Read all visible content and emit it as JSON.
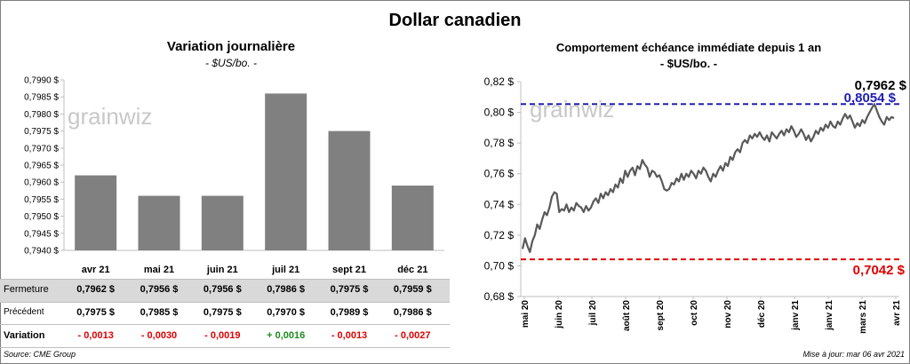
{
  "title": "Dollar canadien",
  "left": {
    "title": "Variation  journalière",
    "subtitle": "- $US/bo. -",
    "row_labels": {
      "close": "Fermeture",
      "previous": "Précédent",
      "variation": "Variation"
    },
    "close_values": [
      "0,7962  $",
      "0,7956  $",
      "0,7956  $",
      "0,7986  $",
      "0,7975  $",
      "0,7959  $"
    ],
    "previous_values": [
      "0,7975  $",
      "0,7985  $",
      "0,7975  $",
      "0,7970  $",
      "0,7989  $",
      "0,7986  $"
    ],
    "variation_values": [
      "- 0,0013",
      "- 0,0030",
      "- 0,0019",
      "+ 0,0016",
      "- 0,0013",
      "- 0,0027"
    ],
    "variation_colors": [
      "#e00000",
      "#e00000",
      "#e00000",
      "#1e8a1e",
      "#e00000",
      "#e00000"
    ]
  },
  "right": {
    "title": "Comportement échéance immédiate depuis 1 an",
    "subtitle": "- $US/bo. -",
    "last_label": "0,7962 $",
    "high_label": "0,8054 $",
    "low_label": "0,7042  $"
  },
  "watermark": "grainwiz",
  "source": "Source: CME Group",
  "updated": "Mise à jour: mar 06 avr 2021",
  "colors": {
    "bar": "#808080",
    "line": "#595959",
    "high": "#1f1fb4",
    "low": "#e00000",
    "table_band": "#d9d9d9"
  },
  "chart_data": [
    {
      "type": "bar",
      "title": "Variation  journalière",
      "subtitle": "- $US/bo. -",
      "categories": [
        "avr 21",
        "mai 21",
        "juin 21",
        "juil 21",
        "sept 21",
        "déc 21"
      ],
      "values": [
        0.7962,
        0.7956,
        0.7956,
        0.7986,
        0.7975,
        0.7959
      ],
      "ylim": [
        0.794,
        0.799
      ],
      "yticks": [
        "0,7940 $",
        "0,7945 $",
        "0,7950 $",
        "0,7955 $",
        "0,7960 $",
        "0,7965 $",
        "0,7970 $",
        "0,7975 $",
        "0,7980 $",
        "0,7985 $",
        "0,7990 $"
      ],
      "grid": false
    },
    {
      "type": "line",
      "title": "Comportement échéance immédiate depuis 1 an",
      "subtitle": "- $US/bo. -",
      "xticks": [
        "mai 20",
        "juin 20",
        "juil 20",
        "août 20",
        "sept 20",
        "oct 20",
        "nov 20",
        "déc 20",
        "janv 21",
        "janv 21",
        "mars 21",
        "avr 21"
      ],
      "yticks": [
        "0,68 $",
        "0,70 $",
        "0,72 $",
        "0,74 $",
        "0,76 $",
        "0,78 $",
        "0,80 $",
        "0,82 $"
      ],
      "ylim": [
        0.68,
        0.82
      ],
      "series": [
        {
          "values": [
            0.711,
            0.718,
            0.713,
            0.709,
            0.716,
            0.72,
            0.727,
            0.724,
            0.73,
            0.735,
            0.733,
            0.738,
            0.745,
            0.748,
            0.747,
            0.735,
            0.737,
            0.736,
            0.74,
            0.735,
            0.738,
            0.736,
            0.741,
            0.739,
            0.738,
            0.735,
            0.739,
            0.736,
            0.738,
            0.742,
            0.744,
            0.741,
            0.747,
            0.744,
            0.748,
            0.746,
            0.75,
            0.748,
            0.753,
            0.751,
            0.757,
            0.754,
            0.762,
            0.758,
            0.762,
            0.764,
            0.759,
            0.765,
            0.763,
            0.769,
            0.766,
            0.764,
            0.758,
            0.762,
            0.761,
            0.758,
            0.759,
            0.755,
            0.75,
            0.749,
            0.75,
            0.754,
            0.753,
            0.757,
            0.755,
            0.76,
            0.756,
            0.76,
            0.758,
            0.762,
            0.76,
            0.757,
            0.762,
            0.76,
            0.764,
            0.762,
            0.758,
            0.755,
            0.76,
            0.758,
            0.762,
            0.765,
            0.762,
            0.767,
            0.765,
            0.771,
            0.769,
            0.774,
            0.776,
            0.774,
            0.78,
            0.782,
            0.78,
            0.785,
            0.783,
            0.786,
            0.784,
            0.787,
            0.784,
            0.782,
            0.785,
            0.781,
            0.787,
            0.785,
            0.783,
            0.786,
            0.788,
            0.785,
            0.789,
            0.787,
            0.791,
            0.788,
            0.784,
            0.786,
            0.789,
            0.786,
            0.782,
            0.785,
            0.781,
            0.784,
            0.788,
            0.786,
            0.79,
            0.788,
            0.792,
            0.79,
            0.794,
            0.791,
            0.79,
            0.794,
            0.792,
            0.796,
            0.799,
            0.796,
            0.798,
            0.794,
            0.79,
            0.793,
            0.791,
            0.795,
            0.793,
            0.797,
            0.8,
            0.803,
            0.8054,
            0.801,
            0.797,
            0.794,
            0.792,
            0.797,
            0.795,
            0.797,
            0.7962
          ]
        }
      ],
      "hlines": [
        {
          "value": 0.8054,
          "label": "0,8054 $",
          "color": "#1f1fb4"
        },
        {
          "value": 0.7042,
          "label": "0,7042  $",
          "color": "#e00000"
        }
      ],
      "grid": false
    }
  ]
}
